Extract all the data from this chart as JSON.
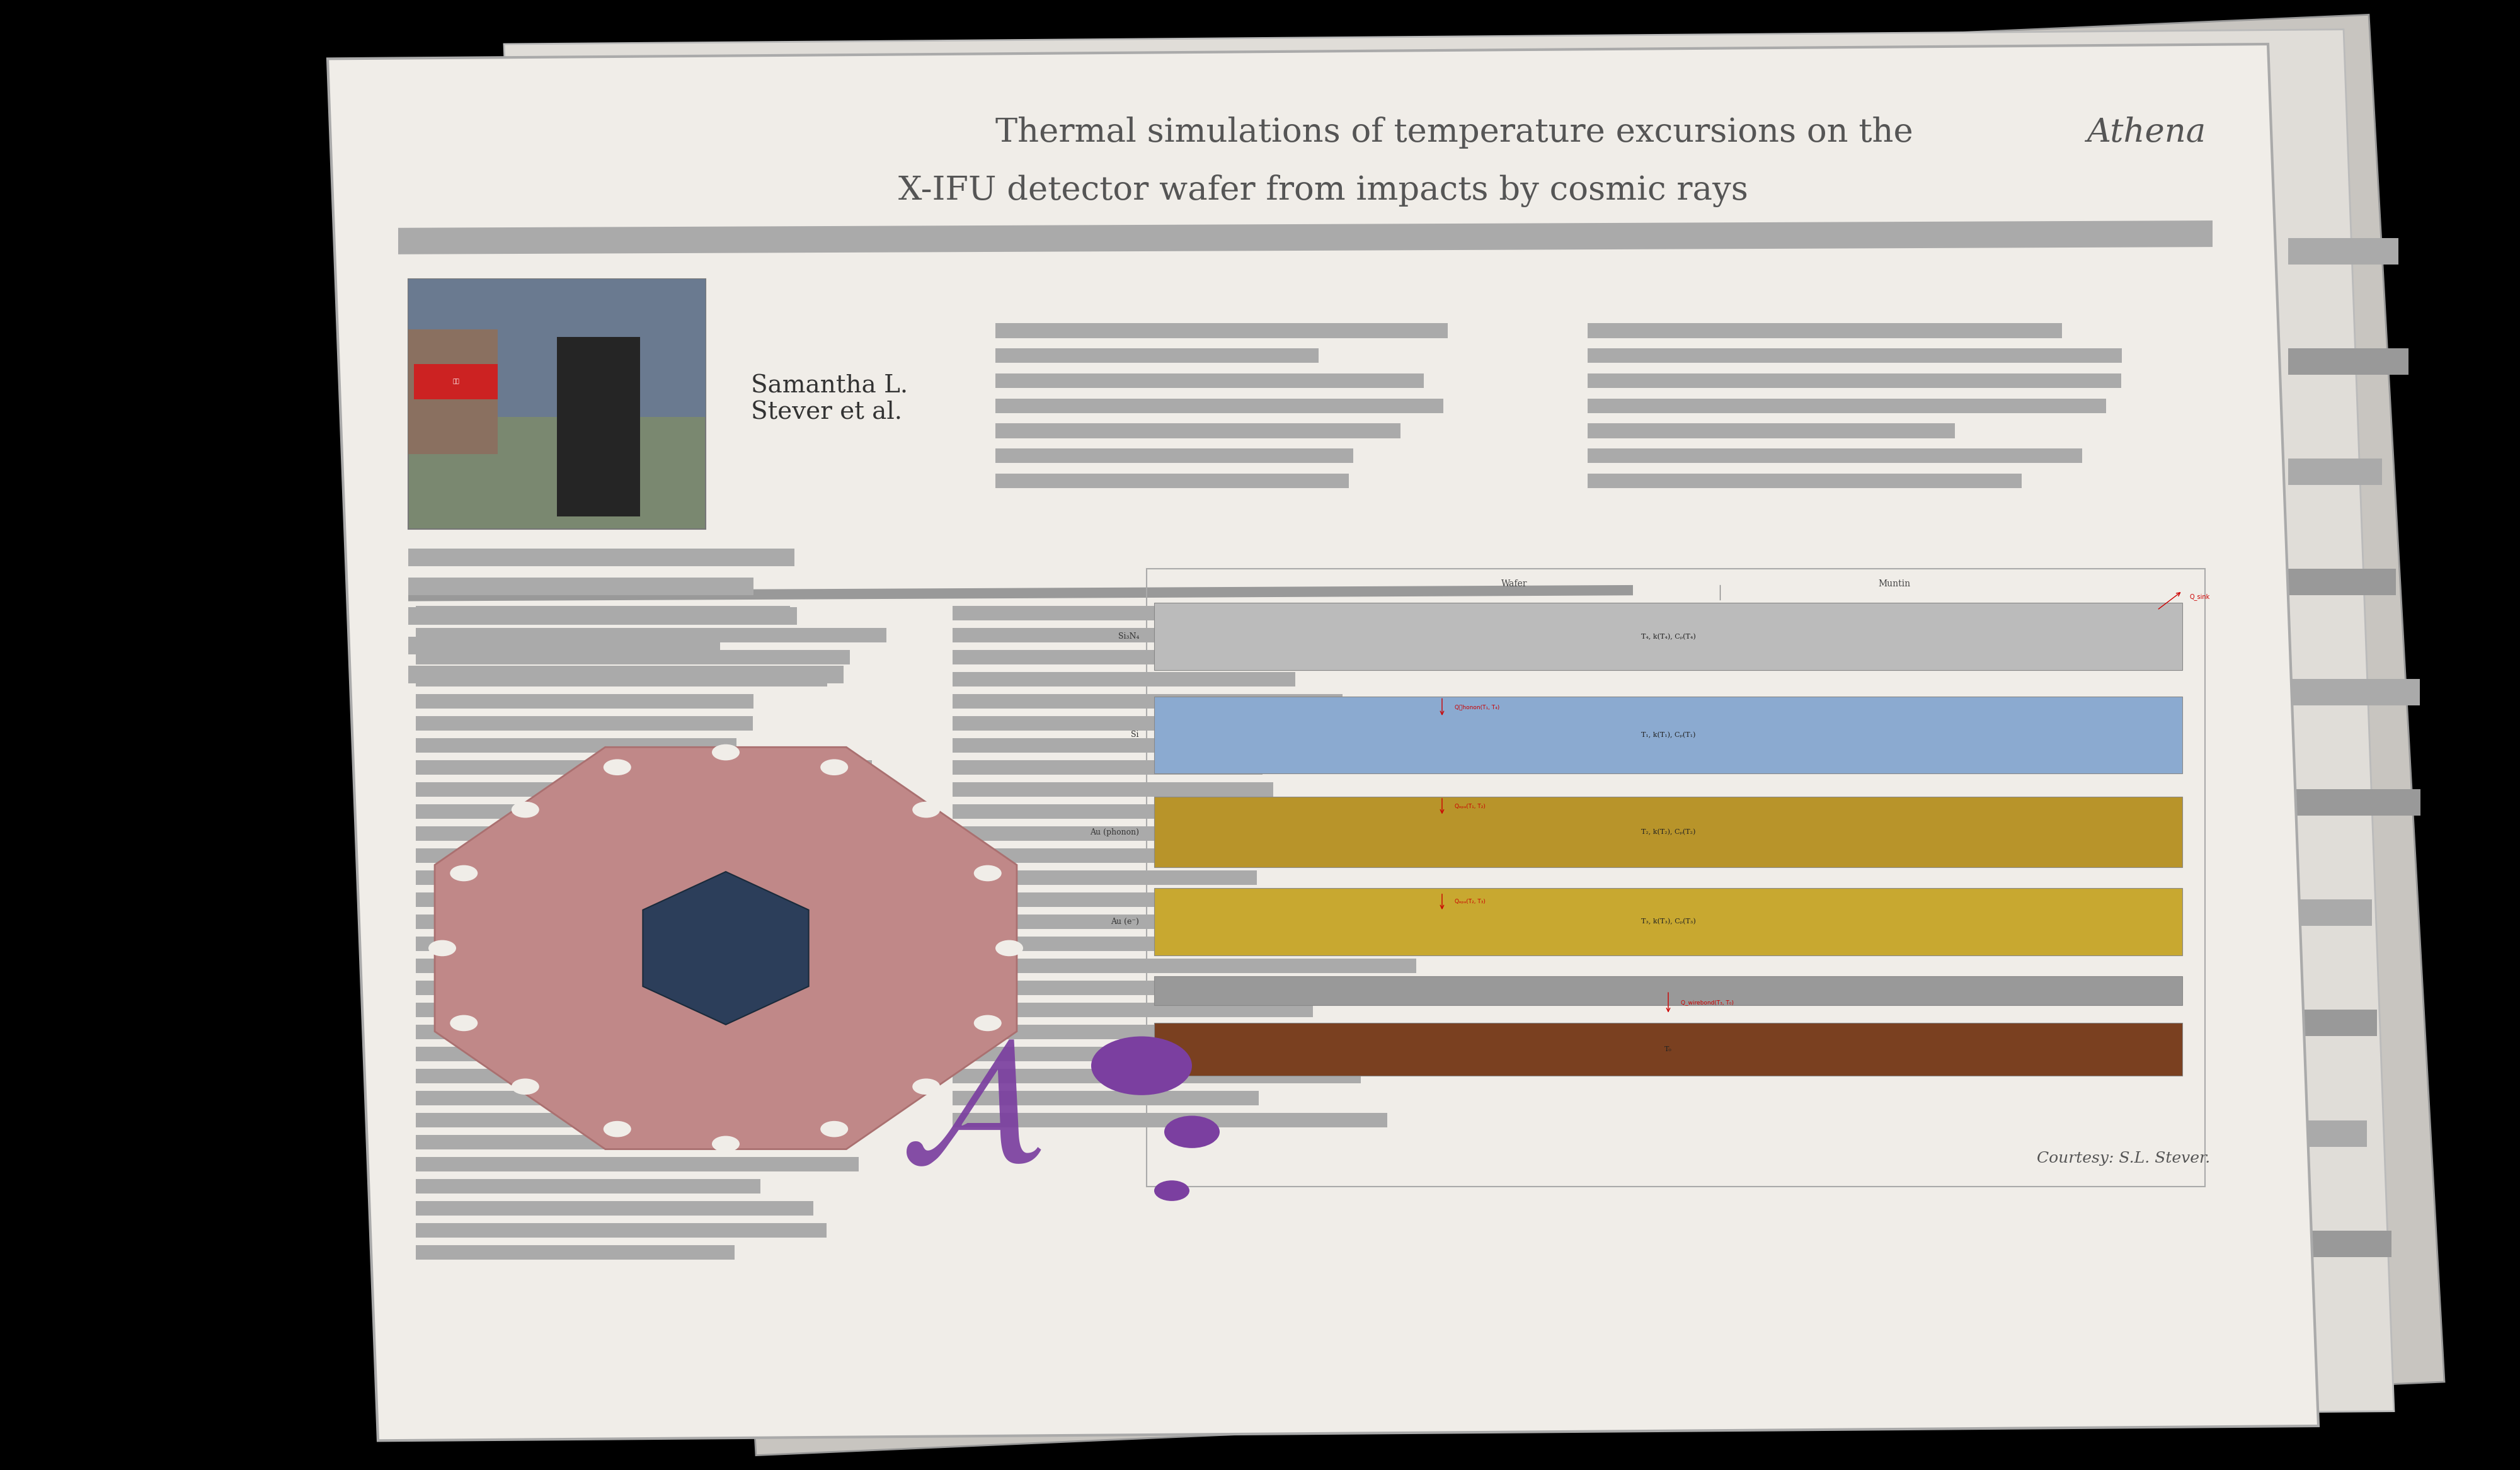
{
  "fig_width": 40.0,
  "fig_height": 23.34,
  "bg_color": "#000000",
  "poster_bg": "#F0EDE8",
  "poster_border": "#AAAAAA",
  "title_text_line1": "Thermal simulations of temperature excursions on the ",
  "title_text_italic": "Athena",
  "title_text_line2": "X-IFU detector wafer from impacts by cosmic rays",
  "title_color": "#555555",
  "title_fontsize": 38,
  "author_name": "Samantha L.\nStever et al.",
  "author_fontsize": 28,
  "stripe_color": "#AAAAAA",
  "text_block_color": "#BBBBBB",
  "courtesy_text": "Courtesy: S.L. Stever.",
  "courtesy_fontsize": 18,
  "wafer_color": "#C08888",
  "wafer_center_color": "#2C3E5A",
  "layer_si3n4_color": "#BBBBBB",
  "layer_si_color": "#8BAAD0",
  "layer_au_phonon_color": "#B8942A",
  "layer_au_e_color": "#C8A830",
  "layer_brown_color": "#7A4020",
  "layer_gray_color": "#999999",
  "label_color": "#555555",
  "arrow_color": "#CC0000"
}
